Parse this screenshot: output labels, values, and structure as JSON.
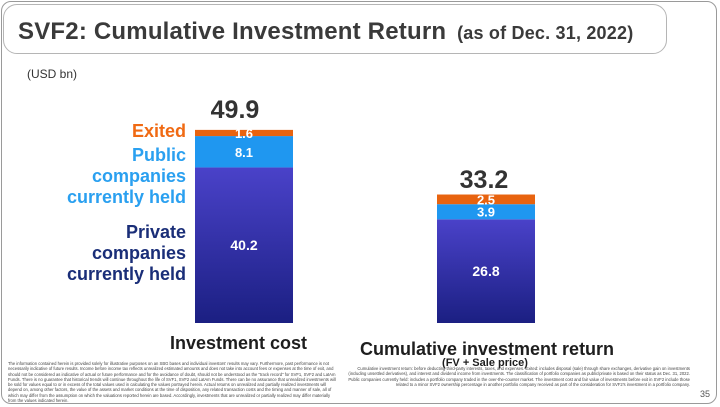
{
  "title": "SVF2: Cumulative Investment Return",
  "subtitle": "(as of Dec. 31, 2022)",
  "unit": "(USD bn)",
  "legend": {
    "exited": "Exited",
    "public_line1": "Public",
    "public_line2": "companies",
    "public_line3": "currently held",
    "private_line1": "Private",
    "private_line2": "companies",
    "private_line3": "currently held"
  },
  "categories": {
    "cost": "Investment cost",
    "return": "Cumulative investment return",
    "return_sub": "(FV + Sale price)"
  },
  "totals": {
    "cost": "49.9",
    "return": "33.2"
  },
  "footnote_left": "The information contained herein is provided solely for illustrative purposes on an SBG bases and individual investors' results may vary. Furthermore, past performance is not necessarily indicative of future results. Income before income tax reflects unrealized estimated amounts and does not take into account fees or expenses at the time of exit, and should not be considered as indicative of actual or future performance and for the avoidance of doubt, should not be understood as the \"track record\" for SVF1, SVF2 and LatAm Funds. There is no guarantee that historical trends will continue throughout the life of SVF1, SVF2 and LatAm Funds. There can be no assurance that unrealized investments will be sold for values equal to or in excess of the total values used in calculating the values portrayed herein. Actual returns on unrealized and partially realized investments will depend on, among other factors, the value of the assets and market conditions at the time of disposition, any related transaction costs and the timing and manner of sale, all of which may differ from the assumption on which the valuations reported herein are based. Accordingly, investments that are unrealized or partially realized may differ materially from the values indicated herein.",
  "footnote_right": "Cumulative investment return: before deducting third-party interests, taxes, and expenses. Exited: includes disposal (sale) through share exchanges, derivative gain on investments (including unsettled derivatives), and interest and dividend income from investments. The classification of portfolio companies as public/private is based on their status as Dec. 31, 2022. Public companies currently held: includes a portfolio company traded in the over-the-counter market. The investment cost and fair value of investments before exit in SVF2 include those related to a minor SVF2 ownership percentage in another portfolio company received as part of the consideration for SVF2's investment in a portfolio company.",
  "page_number": "35",
  "colors": {
    "exited": "#e8630f",
    "public": "#1f97f0",
    "private_top": "#4a42c9",
    "private_bottom": "#1b1f82"
  },
  "chart_data": {
    "type": "bar",
    "stacked": true,
    "categories": [
      "Investment cost",
      "Cumulative investment return"
    ],
    "series": [
      {
        "name": "Private companies currently held",
        "values": [
          40.2,
          26.8
        ]
      },
      {
        "name": "Public companies currently held",
        "values": [
          8.1,
          3.9
        ]
      },
      {
        "name": "Exited",
        "values": [
          1.6,
          2.5
        ]
      }
    ],
    "totals": [
      49.9,
      33.2
    ],
    "ylabel": "(USD bn)"
  }
}
